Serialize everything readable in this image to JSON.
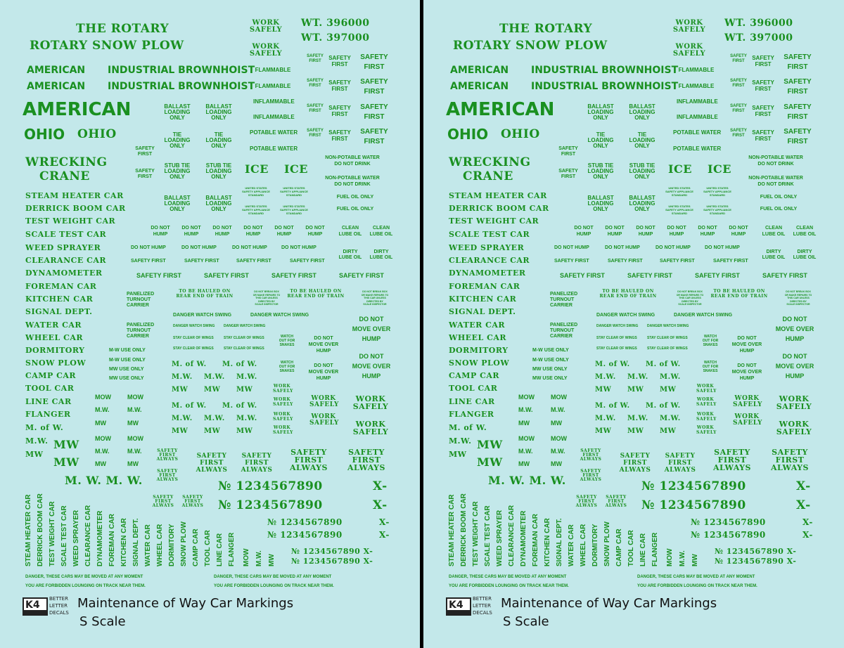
{
  "sheet": {
    "title": "Maintenance of Way Car Markings",
    "scale": "S Scale",
    "brand_line1": "BETTER",
    "brand_line2": "LETTER",
    "brand_line3": "DECALS",
    "brand_logo": "K4",
    "decal_color": "#1a9020",
    "background_color": "#c3e8ea",
    "the_rotary": "THE ROTARY",
    "rotary_snow_plow": "ROTARY SNOW PLOW",
    "american": "AMERICAN",
    "industrial_brownhoist": "INDUSTRIAL BROWNHOIST",
    "ohio": "OHIO",
    "wrecking": "WRECKING",
    "crane": "CRANE",
    "wt1": "WT. 396000",
    "wt2": "WT. 397000",
    "work": "WORK",
    "safely": "SAFELY",
    "safety": "SAFETY",
    "first": "FIRST",
    "always": "ALWAYS",
    "flammable": "FLAMMABLE",
    "inflammable": "INFLAMMABLE",
    "potable_water": "POTABLE WATER",
    "nonpotable_water": "NON-POTABLE WATER",
    "do_not_drink": "DO NOT DRINK",
    "fuel_oil_only": "FUEL OIL ONLY",
    "ballast": "BALLAST",
    "loading": "LOADING",
    "only": "ONLY",
    "tie": "TIE",
    "stub_tie": "STUB TIE",
    "ice": "ICE",
    "united_states": "UNITED STATES",
    "safety_appliance": "SAFETY APPLIANCE",
    "standard": "STANDARD",
    "do_not": "DO NOT",
    "hump": "HUMP",
    "do_not_hump": "DO NOT HUMP",
    "move_over": "MOVE OVER",
    "clean": "CLEAN",
    "dirty": "DIRTY",
    "lube_oil": "LUBE OIL",
    "safety_first": "SAFETY FIRST",
    "panelized": "PANELIZED",
    "turnout": "TURNOUT",
    "carrier": "CARRIER",
    "to_be_hauled": "TO BE HAULED ON",
    "rear_end": "REAR END OF TRAIN",
    "do_not_break": "DO NOT BREAK BOX",
    "or_make_repairs": "OR MAKE REPAIRS TO",
    "this_car_unless": "THIS CAR UNLESS",
    "directed_by": "DIRECTED BY",
    "scale_inspector": "SCALE INSPECTOR",
    "danger_watch_swing": "DANGER WATCH SWING",
    "stay_clear": "STAY CLEAR OF WINGS",
    "watch": "WATCH",
    "out_for": "OUT FOR",
    "snakes": "SNAKES",
    "mw_use_only1": "M-W USE ONLY",
    "mw_use_only2": "M-W USE ONLY",
    "mw_use_only3": "MW USE ONLY",
    "mw_use_only4": "MW USE ONLY",
    "m_of_w": "M. of W.",
    "mw_dot": "M.W.",
    "mw": "MW",
    "mow": "MOW",
    "m_w_m_w": "M. W.  M. W.",
    "no_big": "№ 1234567890",
    "no_med": "№ 1234567890",
    "no_small": "№ 1234567890 X-",
    "x_dash": "X-",
    "danger_line": "DANGER, THESE CARS MAY BE MOVED AT ANY MOMENT",
    "forbidden_line": "YOU ARE FORBIDDEN LOUNGING ON TRACK NEAR THEM.",
    "car_names": [
      "STEAM HEATER CAR",
      "DERRICK BOOM CAR",
      "TEST WEIGHT CAR",
      "SCALE TEST CAR",
      "WEED SPRAYER",
      "CLEARANCE CAR",
      "DYNAMOMETER",
      "FOREMAN CAR",
      "KITCHEN CAR",
      "SIGNAL DEPT.",
      "WATER CAR",
      "WHEEL CAR",
      "DORMITORY",
      "SNOW PLOW",
      "CAMP CAR",
      "TOOL CAR",
      "LINE CAR",
      "FLANGER",
      "M. of W.",
      "M.W.",
      "MW"
    ],
    "vertical_names": [
      "STEAM HEATER CAR",
      "DERRICK BOOM CAR",
      "TEST WEIGHT CAR",
      "SCALE TEST CAR",
      "WEED SPRAYER",
      "CLEARANCE CAR",
      "DYNAMOMETER",
      "FOREMAN CAR",
      "KITCHEN CAR",
      "SIGNAL DEPT.",
      "WATER CAR",
      "WHEEL CAR",
      "DORMITORY",
      "SNOW PLOW",
      "CAMP CAR",
      "TOOL CAR",
      "LINE CAR",
      "FLANGER",
      "MOW",
      "M.W.",
      "MW"
    ]
  }
}
